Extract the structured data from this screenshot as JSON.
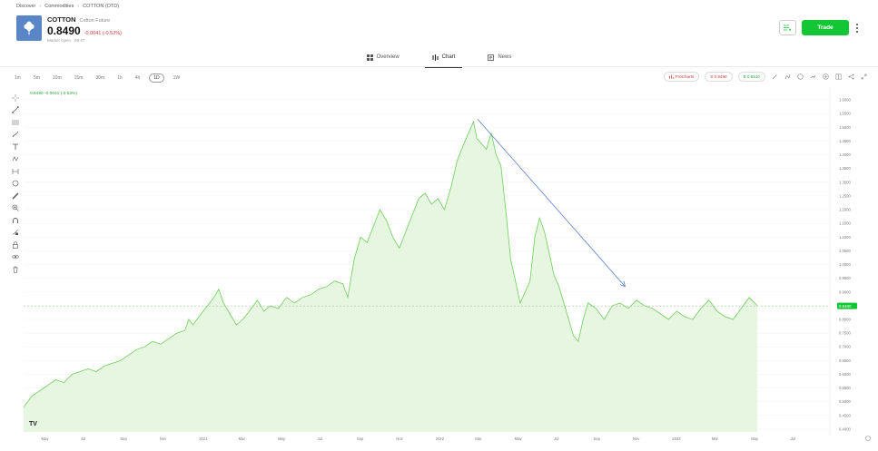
{
  "breadcrumb": [
    "Discover",
    "Commodities",
    "COTTON (OTD)"
  ],
  "instrument": {
    "symbol": "COTTON",
    "name": "Cotton Future",
    "price": "0.8490",
    "change": "-0.0041 (-0.52%)",
    "status": "Market Open · 09:47"
  },
  "header": {
    "trade_label": "Trade"
  },
  "tabs": [
    {
      "label": "Overview",
      "icon": "grid-icon"
    },
    {
      "label": "Chart",
      "icon": "chart-icon",
      "active": true
    },
    {
      "label": "News",
      "icon": "news-icon"
    }
  ],
  "timeframes": [
    "1m",
    "5m",
    "10m",
    "15m",
    "30m",
    "1h",
    "4h",
    "1D",
    "1W"
  ],
  "active_timeframe": "1D",
  "toolbar": {
    "procharts_label": "ProCharts",
    "sell_label": "S 0.8490",
    "buy_label": "B 0.8510"
  },
  "legend_text": "0.8490 -0.0041 (-0.52%)",
  "colors": {
    "accent_green": "#13c636",
    "line_green": "#6ccf57",
    "fill_green": "#e6f6e1",
    "trend_blue": "#5b7fd4",
    "down_red": "#d0393b"
  },
  "chart_data": {
    "type": "area",
    "y_ticks": [
      "1.6000",
      "1.5500",
      "1.5000",
      "1.4500",
      "1.4000",
      "1.3500",
      "1.3000",
      "1.2500",
      "1.2000",
      "1.1500",
      "1.1000",
      "1.0500",
      "1.0000",
      "0.9500",
      "0.9000",
      "0.8500",
      "0.8000",
      "0.7500",
      "0.7000",
      "0.6500",
      "0.6000",
      "0.5500",
      "0.5000",
      "0.4500",
      "0.4000"
    ],
    "ylim": [
      0.39,
      1.62
    ],
    "x_ticks": [
      "May",
      "Jul",
      "Sep",
      "Nov",
      "2021",
      "Mar",
      "May",
      "Jul",
      "Sep",
      "Nov",
      "2022",
      "Mar",
      "May",
      "Jul",
      "Sep",
      "Nov",
      "2023",
      "Mar",
      "May",
      "Jul"
    ],
    "current_price": 0.849,
    "current_price_label": "0.8490",
    "x_range": [
      0,
      1
    ],
    "points": [
      [
        0.0,
        0.48
      ],
      [
        0.01,
        0.52
      ],
      [
        0.02,
        0.54
      ],
      [
        0.03,
        0.56
      ],
      [
        0.04,
        0.58
      ],
      [
        0.05,
        0.57
      ],
      [
        0.06,
        0.6
      ],
      [
        0.07,
        0.61
      ],
      [
        0.08,
        0.62
      ],
      [
        0.09,
        0.61
      ],
      [
        0.1,
        0.63
      ],
      [
        0.11,
        0.64
      ],
      [
        0.12,
        0.65
      ],
      [
        0.13,
        0.67
      ],
      [
        0.14,
        0.69
      ],
      [
        0.15,
        0.7
      ],
      [
        0.16,
        0.72
      ],
      [
        0.17,
        0.71
      ],
      [
        0.18,
        0.73
      ],
      [
        0.19,
        0.75
      ],
      [
        0.2,
        0.76
      ],
      [
        0.205,
        0.8
      ],
      [
        0.21,
        0.78
      ],
      [
        0.22,
        0.82
      ],
      [
        0.228,
        0.85
      ],
      [
        0.236,
        0.88
      ],
      [
        0.242,
        0.91
      ],
      [
        0.248,
        0.86
      ],
      [
        0.256,
        0.82
      ],
      [
        0.264,
        0.78
      ],
      [
        0.272,
        0.8
      ],
      [
        0.28,
        0.83
      ],
      [
        0.29,
        0.87
      ],
      [
        0.298,
        0.83
      ],
      [
        0.306,
        0.85
      ],
      [
        0.316,
        0.84
      ],
      [
        0.326,
        0.88
      ],
      [
        0.336,
        0.86
      ],
      [
        0.346,
        0.88
      ],
      [
        0.356,
        0.89
      ],
      [
        0.366,
        0.91
      ],
      [
        0.376,
        0.92
      ],
      [
        0.386,
        0.94
      ],
      [
        0.396,
        0.93
      ],
      [
        0.402,
        0.88
      ],
      [
        0.41,
        1.02
      ],
      [
        0.418,
        1.1
      ],
      [
        0.426,
        1.08
      ],
      [
        0.434,
        1.14
      ],
      [
        0.442,
        1.2
      ],
      [
        0.45,
        1.16
      ],
      [
        0.458,
        1.1
      ],
      [
        0.466,
        1.06
      ],
      [
        0.474,
        1.12
      ],
      [
        0.482,
        1.18
      ],
      [
        0.49,
        1.24
      ],
      [
        0.498,
        1.26
      ],
      [
        0.506,
        1.22
      ],
      [
        0.514,
        1.24
      ],
      [
        0.522,
        1.2
      ],
      [
        0.53,
        1.28
      ],
      [
        0.538,
        1.38
      ],
      [
        0.546,
        1.44
      ],
      [
        0.552,
        1.48
      ],
      [
        0.558,
        1.52
      ],
      [
        0.562,
        1.46
      ],
      [
        0.568,
        1.44
      ],
      [
        0.574,
        1.42
      ],
      [
        0.58,
        1.48
      ],
      [
        0.586,
        1.4
      ],
      [
        0.592,
        1.36
      ],
      [
        0.598,
        1.2
      ],
      [
        0.604,
        1.02
      ],
      [
        0.61,
        0.94
      ],
      [
        0.616,
        0.86
      ],
      [
        0.622,
        0.9
      ],
      [
        0.628,
        0.94
      ],
      [
        0.634,
        1.1
      ],
      [
        0.64,
        1.17
      ],
      [
        0.646,
        1.12
      ],
      [
        0.652,
        1.04
      ],
      [
        0.658,
        0.96
      ],
      [
        0.664,
        0.92
      ],
      [
        0.67,
        0.86
      ],
      [
        0.676,
        0.8
      ],
      [
        0.682,
        0.74
      ],
      [
        0.688,
        0.72
      ],
      [
        0.694,
        0.8
      ],
      [
        0.7,
        0.86
      ],
      [
        0.71,
        0.84
      ],
      [
        0.72,
        0.8
      ],
      [
        0.73,
        0.85
      ],
      [
        0.74,
        0.86
      ],
      [
        0.75,
        0.84
      ],
      [
        0.76,
        0.87
      ],
      [
        0.77,
        0.85
      ],
      [
        0.78,
        0.84
      ],
      [
        0.79,
        0.82
      ],
      [
        0.8,
        0.8
      ],
      [
        0.81,
        0.83
      ],
      [
        0.82,
        0.81
      ],
      [
        0.83,
        0.8
      ],
      [
        0.84,
        0.84
      ],
      [
        0.85,
        0.87
      ],
      [
        0.86,
        0.83
      ],
      [
        0.87,
        0.81
      ],
      [
        0.88,
        0.8
      ],
      [
        0.89,
        0.84
      ],
      [
        0.9,
        0.88
      ],
      [
        0.91,
        0.85
      ]
    ],
    "trendline": [
      [
        0.563,
        1.53
      ],
      [
        0.746,
        0.92
      ]
    ]
  }
}
